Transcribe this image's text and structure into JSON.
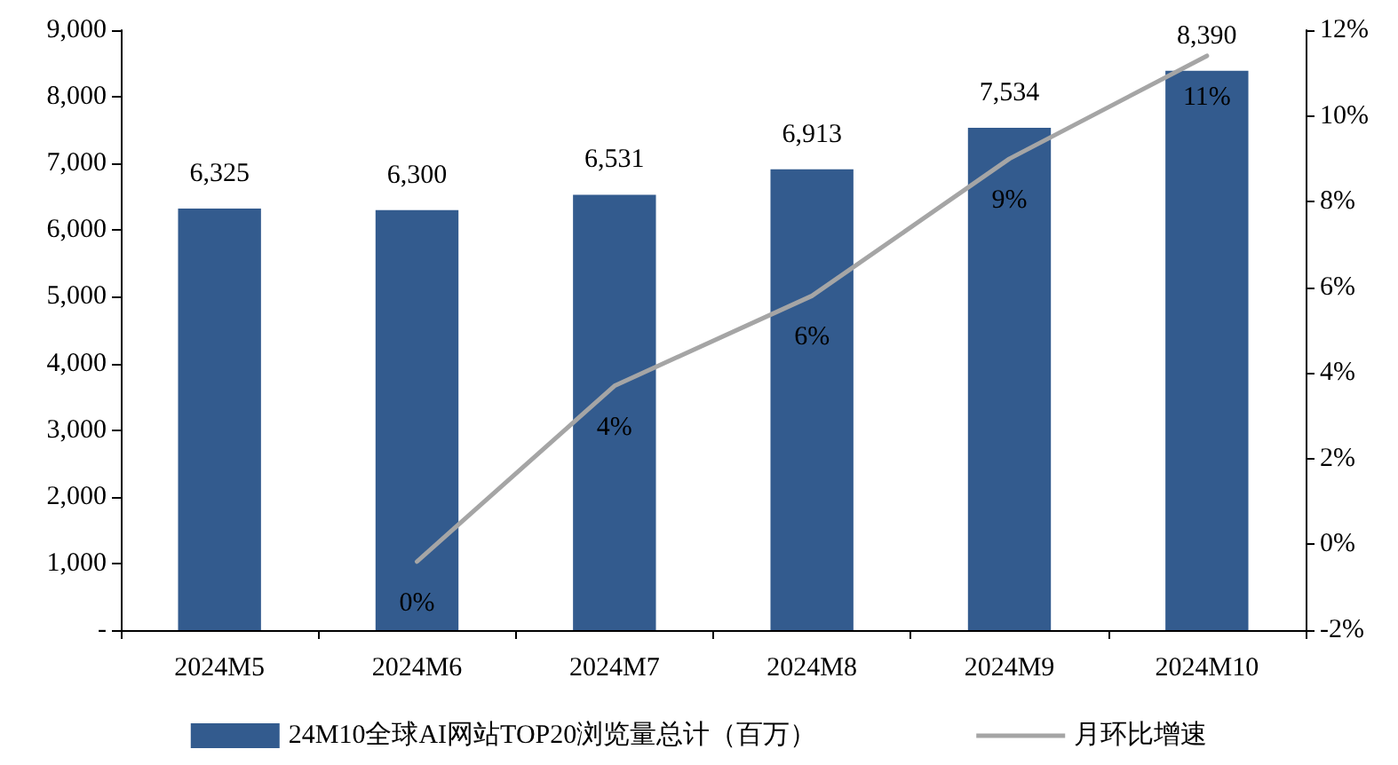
{
  "chart_data": {
    "type": "bar",
    "categories": [
      "2024M5",
      "2024M6",
      "2024M7",
      "2024M8",
      "2024M9",
      "2024M10"
    ],
    "series": [
      {
        "name": "24M10全球AI网站TOP20浏览量总计（百万）",
        "color": "#335b8e",
        "values": [
          6325,
          6300,
          6531,
          6913,
          7534,
          8390
        ],
        "value_labels": [
          "6,325",
          "6,300",
          "6,531",
          "6,913",
          "7,534",
          "8,390"
        ]
      },
      {
        "name": "月环比增速",
        "type": "line",
        "axis": "y2",
        "color": "#a5a5a5",
        "values": [
          null,
          -0.4,
          3.7,
          5.8,
          9.0,
          11.4
        ],
        "value_labels": [
          null,
          "0%",
          "4%",
          "6%",
          "9%",
          "11%"
        ]
      }
    ],
    "ylim": [
      0,
      9000
    ],
    "yticks": [
      {
        "value": 0,
        "label": "-"
      },
      {
        "value": 1000,
        "label": "1,000"
      },
      {
        "value": 2000,
        "label": "2,000"
      },
      {
        "value": 3000,
        "label": "3,000"
      },
      {
        "value": 4000,
        "label": "4,000"
      },
      {
        "value": 5000,
        "label": "5,000"
      },
      {
        "value": 6000,
        "label": "6,000"
      },
      {
        "value": 7000,
        "label": "7,000"
      },
      {
        "value": 8000,
        "label": "8,000"
      },
      {
        "value": 9000,
        "label": "9,000"
      }
    ],
    "y2lim": [
      -2,
      12
    ],
    "y2ticks": [
      {
        "value": -2,
        "label": "-2%"
      },
      {
        "value": 0,
        "label": "0%"
      },
      {
        "value": 2,
        "label": "2%"
      },
      {
        "value": 4,
        "label": "4%"
      },
      {
        "value": 6,
        "label": "6%"
      },
      {
        "value": 8,
        "label": "8%"
      },
      {
        "value": 10,
        "label": "10%"
      },
      {
        "value": 12,
        "label": "12%"
      }
    ],
    "grid": false,
    "legend": "bottom",
    "marker": "none",
    "line_style": "solid"
  }
}
